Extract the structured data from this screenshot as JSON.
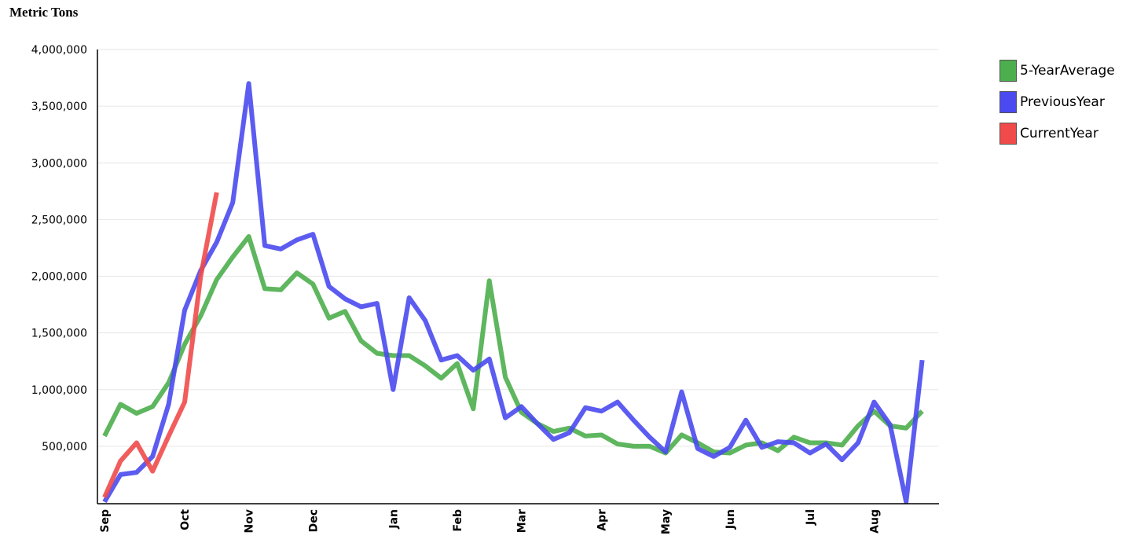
{
  "chart_data": {
    "type": "line",
    "title": "",
    "ylabel": "Metric Tons",
    "xlabel": "",
    "ylim": [
      0,
      4000000
    ],
    "y_ticks": [
      500000,
      1000000,
      1500000,
      2000000,
      2500000,
      3000000,
      3500000,
      4000000
    ],
    "y_tick_labels": [
      "500,000",
      "1,000,000",
      "1,500,000",
      "2,000,000",
      "2,500,000",
      "3,000,000",
      "3,500,000",
      "4,000,000"
    ],
    "x_count": 53,
    "month_ticks": [
      {
        "label": "Sep",
        "index": 0
      },
      {
        "label": "Oct",
        "index": 5
      },
      {
        "label": "Nov",
        "index": 9
      },
      {
        "label": "Dec",
        "index": 13
      },
      {
        "label": "Jan",
        "index": 18
      },
      {
        "label": "Feb",
        "index": 22
      },
      {
        "label": "Mar",
        "index": 26
      },
      {
        "label": "Apr",
        "index": 31
      },
      {
        "label": "May",
        "index": 35
      },
      {
        "label": "Jun",
        "index": 39
      },
      {
        "label": "Jul",
        "index": 44
      },
      {
        "label": "Aug",
        "index": 48
      }
    ],
    "grid": true,
    "legend_position": "right",
    "series": [
      {
        "name": "5-YearAverage",
        "color": "#4cae4c",
        "values": [
          590000,
          870000,
          790000,
          850000,
          1060000,
          1400000,
          1650000,
          1970000,
          2170000,
          2350000,
          1890000,
          1880000,
          2030000,
          1930000,
          1630000,
          1690000,
          1430000,
          1320000,
          1300000,
          1300000,
          1210000,
          1100000,
          1230000,
          830000,
          1960000,
          1110000,
          800000,
          700000,
          630000,
          660000,
          590000,
          600000,
          520000,
          500000,
          500000,
          440000,
          600000,
          530000,
          450000,
          440000,
          510000,
          530000,
          460000,
          580000,
          530000,
          530000,
          510000,
          680000,
          810000,
          680000,
          660000,
          810000
        ]
      },
      {
        "name": "PreviousYear",
        "color": "#4a4af0",
        "values": [
          10000,
          250000,
          270000,
          410000,
          870000,
          1700000,
          2050000,
          2300000,
          2650000,
          3700000,
          2270000,
          2240000,
          2320000,
          2370000,
          1910000,
          1800000,
          1730000,
          1760000,
          1000000,
          1810000,
          1610000,
          1260000,
          1300000,
          1170000,
          1270000,
          750000,
          850000,
          700000,
          560000,
          620000,
          840000,
          810000,
          890000,
          730000,
          580000,
          450000,
          980000,
          480000,
          410000,
          490000,
          730000,
          490000,
          540000,
          530000,
          440000,
          520000,
          380000,
          530000,
          890000,
          690000,
          10000,
          1260000
        ]
      },
      {
        "name": "CurrentYear",
        "color": "#f04a4a",
        "values": [
          50000,
          370000,
          530000,
          280000,
          590000,
          890000,
          2000000,
          2740000
        ]
      }
    ]
  }
}
